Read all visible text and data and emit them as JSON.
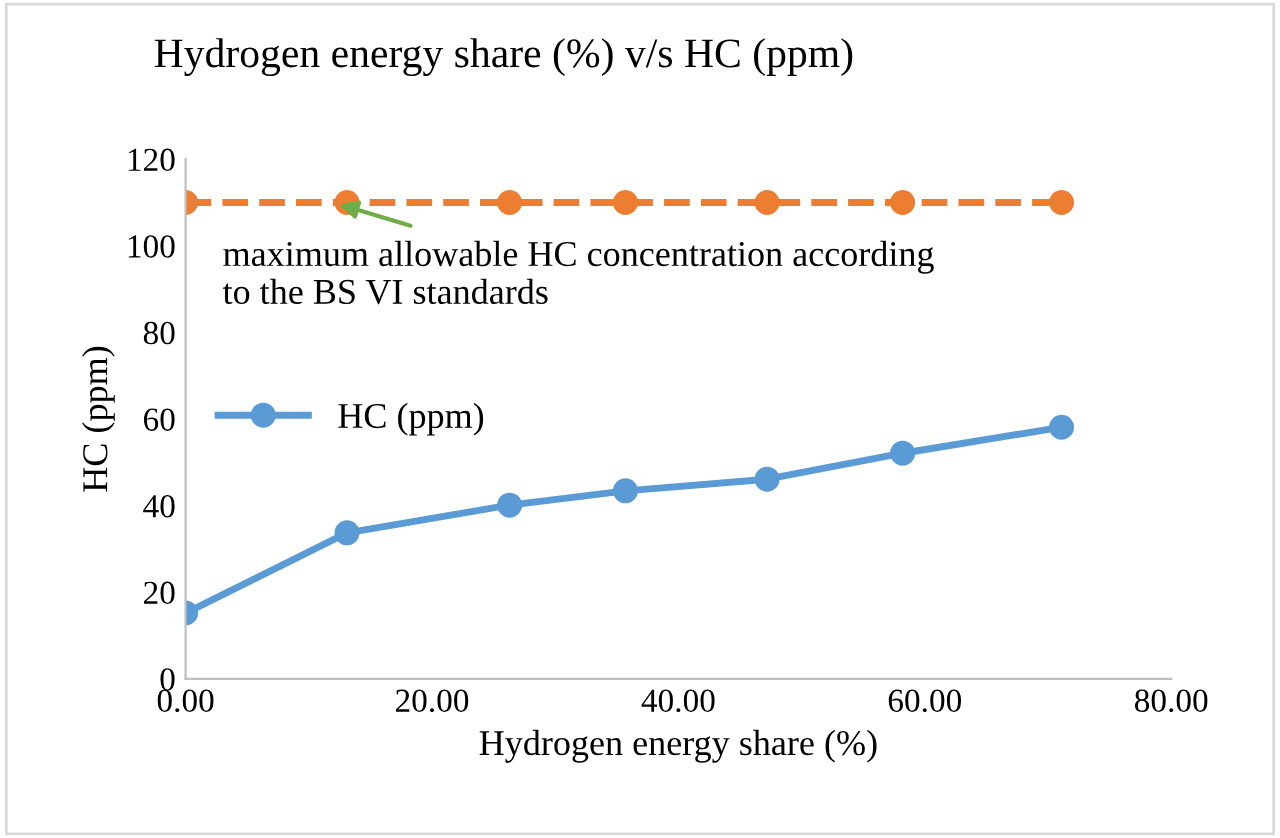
{
  "chart_data": {
    "type": "line",
    "title": "Hydrogen energy share (%) v/s HC (ppm)",
    "xlabel": "Hydrogen energy share (%)",
    "ylabel": "HC (ppm)",
    "series": [
      {
        "name": "HC (ppm)",
        "color": "#5b9bd5",
        "x": [
          0,
          13.1,
          26.3,
          35.7,
          47.2,
          58.2,
          71.1
        ],
        "values": [
          15.2,
          33.7,
          40.1,
          43.4,
          46.1,
          52.1,
          58.1
        ],
        "line_style": "solid"
      },
      {
        "color": "#ed7d31",
        "x": [
          0,
          13.1,
          26.3,
          35.7,
          47.2,
          58.2,
          71.1
        ],
        "values": [
          110,
          110,
          110,
          110,
          110,
          110,
          110
        ],
        "line_style": "dashed"
      }
    ],
    "marker": "circle",
    "xlim": [
      0,
      80
    ],
    "xticks": [
      {
        "value": 0,
        "label": "0.00"
      },
      {
        "value": 20,
        "label": "20.00"
      },
      {
        "value": 40,
        "label": "40.00"
      },
      {
        "value": 60,
        "label": "60.00"
      },
      {
        "value": 80,
        "label": "80.00"
      }
    ],
    "ylim": [
      0,
      120
    ],
    "yticks": [
      0,
      20,
      40,
      60,
      80,
      100,
      120
    ],
    "annotations": [
      {
        "text": "maximum allowable HC concentration according\nto the BS VI standards",
        "x": 12,
        "y": 110
      }
    ],
    "grid": false,
    "legend": "center left"
  }
}
